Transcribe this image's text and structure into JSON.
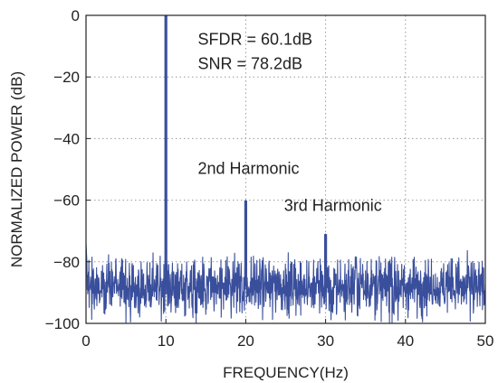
{
  "chart_data": {
    "type": "line",
    "title": "",
    "xlabel": "FREQUENCY(Hz)",
    "ylabel": "NORMALIZED POWER (dB)",
    "xlim": [
      0,
      50
    ],
    "ylim": [
      -100,
      0
    ],
    "x_ticks": [
      0,
      10,
      20,
      30,
      40,
      50
    ],
    "y_ticks": [
      0,
      -20,
      -40,
      -60,
      -80,
      -100
    ],
    "y_tick_labels": [
      "0",
      "−20",
      "−40",
      "−60",
      "−80",
      "−100"
    ],
    "grid": "dotted",
    "line_color": "#3a4f9c",
    "noise_floor": {
      "mean": -88,
      "min": -100,
      "max": -79
    },
    "peaks": [
      {
        "x": 10,
        "y": 0
      },
      {
        "x": 20,
        "y": -60.1
      },
      {
        "x": 30,
        "y": -71
      }
    ],
    "annotations": [
      {
        "text": "SFDR = 60.1dB",
        "x": 14,
        "y": -9.5
      },
      {
        "text": "SNR = 78.2dB",
        "x": 14,
        "y": -17.5
      },
      {
        "text": "2nd Harmonic",
        "x": 14,
        "y": -51.5
      },
      {
        "text": "3rd Harmonic",
        "x": 24.8,
        "y": -63.5
      }
    ]
  }
}
